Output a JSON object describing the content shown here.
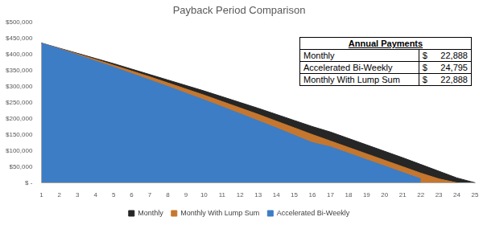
{
  "chart_data": {
    "type": "area",
    "title": "Payback Period Comparison",
    "categories": [
      "1",
      "2",
      "3",
      "4",
      "5",
      "6",
      "7",
      "8",
      "9",
      "10",
      "11",
      "12",
      "13",
      "14",
      "15",
      "16",
      "17",
      "18",
      "19",
      "20",
      "21",
      "22",
      "23",
      "24",
      "25"
    ],
    "series": [
      {
        "name": "Monthly",
        "color": "#262626",
        "values": [
          435000,
          419000,
          403000,
          387000,
          371000,
          354000,
          337000,
          320000,
          303000,
          286000,
          268000,
          250000,
          232000,
          213000,
          194000,
          175000,
          158000,
          138000,
          118000,
          98000,
          78000,
          57000,
          36000,
          15000,
          0
        ]
      },
      {
        "name": "Monthly With Lump Sum",
        "color": "#c5772f",
        "values": [
          435000,
          418000,
          401000,
          384000,
          366000,
          348000,
          330000,
          311000,
          292000,
          273000,
          253000,
          233000,
          213000,
          192000,
          171000,
          150000,
          130000,
          110000,
          90000,
          70000,
          50000,
          30000,
          12000,
          0,
          null
        ]
      },
      {
        "name": "Accelerated Bi-Weekly",
        "color": "#3d7dc5",
        "values": [
          435000,
          417000,
          398000,
          379000,
          360000,
          340000,
          320000,
          300000,
          279000,
          258000,
          237000,
          215000,
          193000,
          171000,
          148000,
          125000,
          112000,
          92000,
          72000,
          52000,
          32000,
          12000,
          null,
          null,
          null
        ]
      }
    ],
    "ylim": [
      0,
      500000
    ],
    "yticks": [
      {
        "value": 0,
        "label": "$ -"
      },
      {
        "value": 50000,
        "label": "$50,000"
      },
      {
        "value": 100000,
        "label": "$100,000"
      },
      {
        "value": 150000,
        "label": "$150,000"
      },
      {
        "value": 200000,
        "label": "$200,000"
      },
      {
        "value": 250000,
        "label": "$250,000"
      },
      {
        "value": 300000,
        "label": "$300,000"
      },
      {
        "value": 350000,
        "label": "$350,000"
      },
      {
        "value": 400000,
        "label": "$400,000"
      },
      {
        "value": 450000,
        "label": "$450,000"
      },
      {
        "value": 500000,
        "label": "$500,000"
      }
    ],
    "grid": false,
    "legend": "bottom",
    "annotations": {
      "title": "Annual Payments",
      "rows": [
        [
          "Monthly",
          "$",
          "22,888"
        ],
        [
          "Accelerated Bi-Weekly",
          "$",
          "24,795"
        ],
        [
          "Monthly With Lump Sum",
          "$",
          "22,888"
        ]
      ]
    }
  }
}
